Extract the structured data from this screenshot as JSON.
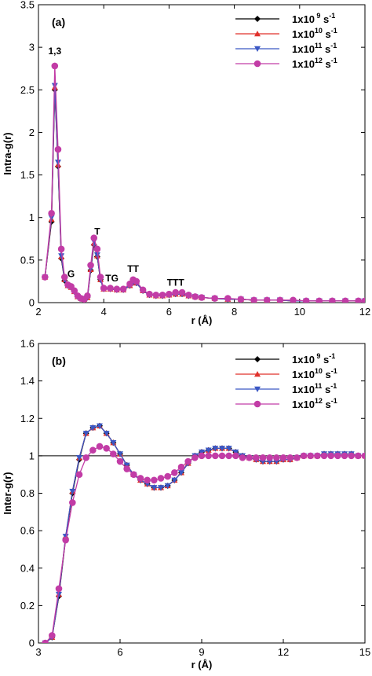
{
  "chart_data": [
    {
      "type": "line",
      "panel_label": "(a)",
      "xlabel": "r (Å)",
      "ylabel": "Intra-g(r)",
      "xlim": [
        2,
        12
      ],
      "ylim": [
        0,
        3.5
      ],
      "xticks": [
        2,
        4,
        6,
        8,
        10,
        12
      ],
      "xtick_labels": [
        "2",
        "4",
        "6",
        "8",
        "10",
        "12"
      ],
      "yticks": [
        0,
        0.5,
        1,
        1.5,
        2,
        2.5,
        3,
        3.5
      ],
      "ytick_labels": [
        "0",
        "0.5",
        "1",
        "1.5",
        "2",
        "2.5",
        "3",
        "3.5"
      ],
      "grid": false,
      "legend_position": "top-right",
      "annotations": [
        {
          "text": "1,3",
          "x": 2.5,
          "y": 2.92
        },
        {
          "text": "G",
          "x": 3.0,
          "y": 0.3
        },
        {
          "text": "T",
          "x": 3.8,
          "y": 0.8
        },
        {
          "text": "TG",
          "x": 4.25,
          "y": 0.25
        },
        {
          "text": "TT",
          "x": 4.9,
          "y": 0.36
        },
        {
          "text": "TTT",
          "x": 6.2,
          "y": 0.2
        }
      ],
      "series": [
        {
          "name": "1x10 9 s-1",
          "name_base": "1x10",
          "name_exp": " 9",
          "name_unit": " s",
          "name_unit_exp": "-1",
          "color": "#000000",
          "marker": "diamond",
          "x": [
            2.2,
            2.4,
            2.5,
            2.6,
            2.7,
            2.8,
            2.9,
            3.0,
            3.1,
            3.2,
            3.3,
            3.4,
            3.5,
            3.6,
            3.7,
            3.8,
            3.9,
            4.0,
            4.2,
            4.4,
            4.6,
            4.8,
            4.9,
            5.0,
            5.2,
            5.4,
            5.6,
            5.8,
            6.0,
            6.2,
            6.4,
            6.6,
            6.8,
            7.0,
            7.4,
            7.8,
            8.2,
            8.6,
            9.0,
            9.4,
            9.8,
            10.2,
            10.6,
            11.0,
            11.4,
            11.8,
            12.0
          ],
          "y": [
            0.3,
            0.95,
            2.5,
            1.6,
            0.52,
            0.26,
            0.2,
            0.18,
            0.13,
            0.07,
            0.05,
            0.04,
            0.06,
            0.38,
            0.68,
            0.54,
            0.27,
            0.16,
            0.16,
            0.15,
            0.15,
            0.2,
            0.24,
            0.23,
            0.14,
            0.09,
            0.08,
            0.08,
            0.09,
            0.1,
            0.1,
            0.08,
            0.07,
            0.06,
            0.05,
            0.04,
            0.04,
            0.03,
            0.03,
            0.03,
            0.02,
            0.02,
            0.02,
            0.02,
            0.02,
            0.02,
            0.02
          ]
        },
        {
          "name": "1x10 10 s-1",
          "name_base": "1x10",
          "name_exp": "10",
          "name_unit": " s",
          "name_unit_exp": "-1",
          "color": "#e0312b",
          "marker": "triangle-up",
          "x": [
            2.2,
            2.4,
            2.5,
            2.6,
            2.7,
            2.8,
            2.9,
            3.0,
            3.1,
            3.2,
            3.3,
            3.4,
            3.5,
            3.6,
            3.7,
            3.8,
            3.9,
            4.0,
            4.2,
            4.4,
            4.6,
            4.8,
            4.9,
            5.0,
            5.2,
            5.4,
            5.6,
            5.8,
            6.0,
            6.2,
            6.4,
            6.6,
            6.8,
            7.0,
            7.4,
            7.8,
            8.2,
            8.6,
            9.0,
            9.4,
            9.8,
            10.2,
            10.6,
            11.0,
            11.4,
            11.8,
            12.0
          ],
          "y": [
            0.3,
            0.98,
            2.53,
            1.62,
            0.54,
            0.27,
            0.2,
            0.18,
            0.13,
            0.07,
            0.05,
            0.04,
            0.06,
            0.39,
            0.7,
            0.55,
            0.27,
            0.16,
            0.16,
            0.15,
            0.15,
            0.2,
            0.24,
            0.23,
            0.14,
            0.09,
            0.08,
            0.08,
            0.09,
            0.1,
            0.1,
            0.08,
            0.07,
            0.06,
            0.05,
            0.04,
            0.04,
            0.03,
            0.03,
            0.03,
            0.02,
            0.02,
            0.02,
            0.02,
            0.02,
            0.02,
            0.02
          ]
        },
        {
          "name": "1x10 11 s-1",
          "name_base": "1x10",
          "name_exp": "11",
          "name_unit": " s",
          "name_unit_exp": "-1",
          "color": "#3a57c4",
          "marker": "triangle-down",
          "x": [
            2.2,
            2.4,
            2.5,
            2.6,
            2.7,
            2.8,
            2.9,
            3.0,
            3.1,
            3.2,
            3.3,
            3.4,
            3.5,
            3.6,
            3.7,
            3.8,
            3.9,
            4.0,
            4.2,
            4.4,
            4.6,
            4.8,
            4.9,
            5.0,
            5.2,
            5.4,
            5.6,
            5.8,
            6.0,
            6.2,
            6.4,
            6.6,
            6.8,
            7.0,
            7.4,
            7.8,
            8.2,
            8.6,
            9.0,
            9.4,
            9.8,
            10.2,
            10.6,
            11.0,
            11.4,
            11.8,
            12.0
          ],
          "y": [
            0.3,
            1.0,
            2.55,
            1.65,
            0.55,
            0.27,
            0.2,
            0.18,
            0.13,
            0.07,
            0.05,
            0.04,
            0.06,
            0.4,
            0.72,
            0.56,
            0.27,
            0.16,
            0.16,
            0.15,
            0.15,
            0.2,
            0.24,
            0.23,
            0.14,
            0.09,
            0.08,
            0.08,
            0.09,
            0.1,
            0.1,
            0.08,
            0.07,
            0.06,
            0.05,
            0.04,
            0.04,
            0.03,
            0.03,
            0.03,
            0.02,
            0.02,
            0.02,
            0.02,
            0.02,
            0.02,
            0.02
          ]
        },
        {
          "name": "1x10 12 s-1",
          "name_base": "1x10",
          "name_exp": "12",
          "name_unit": " s",
          "name_unit_exp": "-1",
          "color": "#c23ca6",
          "marker": "circle",
          "x": [
            2.2,
            2.4,
            2.5,
            2.6,
            2.7,
            2.8,
            2.9,
            3.0,
            3.1,
            3.2,
            3.3,
            3.4,
            3.5,
            3.6,
            3.7,
            3.8,
            3.9,
            4.0,
            4.2,
            4.4,
            4.6,
            4.8,
            4.9,
            5.0,
            5.2,
            5.4,
            5.6,
            5.8,
            6.0,
            6.2,
            6.4,
            6.6,
            6.8,
            7.0,
            7.4,
            7.8,
            8.2,
            8.6,
            9.0,
            9.4,
            9.8,
            10.2,
            10.6,
            11.0,
            11.4,
            11.8,
            12.0
          ],
          "y": [
            0.3,
            1.05,
            2.78,
            1.8,
            0.63,
            0.3,
            0.21,
            0.19,
            0.14,
            0.08,
            0.05,
            0.04,
            0.08,
            0.44,
            0.76,
            0.63,
            0.3,
            0.17,
            0.17,
            0.16,
            0.16,
            0.22,
            0.27,
            0.25,
            0.15,
            0.1,
            0.09,
            0.09,
            0.1,
            0.12,
            0.12,
            0.09,
            0.07,
            0.06,
            0.05,
            0.05,
            0.04,
            0.03,
            0.03,
            0.03,
            0.03,
            0.02,
            0.02,
            0.02,
            0.02,
            0.02,
            0.02
          ]
        }
      ]
    },
    {
      "type": "line",
      "panel_label": "(b)",
      "xlabel": "r (Å)",
      "ylabel": "Inter-g(r)",
      "xlim": [
        3,
        15
      ],
      "ylim": [
        0,
        1.6
      ],
      "xticks": [
        3,
        6,
        9,
        12,
        15
      ],
      "xtick_labels": [
        "3",
        "6",
        "9",
        "12",
        "15"
      ],
      "yticks": [
        0,
        0.2,
        0.4,
        0.6,
        0.8,
        1,
        1.2,
        1.4,
        1.6
      ],
      "ytick_labels": [
        "0",
        "0.2",
        "0.4",
        "0.6",
        "0.8",
        "1",
        "1.2",
        "1.4",
        "1.6"
      ],
      "reference_line_y": 1,
      "grid": false,
      "legend_position": "top-right",
      "series": [
        {
          "name": "1x10 9 s-1",
          "name_base": "1x10",
          "name_exp": " 9",
          "name_unit": " s",
          "name_unit_exp": "-1",
          "color": "#000000",
          "marker": "diamond",
          "x": [
            3.25,
            3.5,
            3.75,
            4.0,
            4.25,
            4.5,
            4.75,
            5.0,
            5.25,
            5.5,
            5.75,
            6.0,
            6.25,
            6.5,
            6.75,
            7.0,
            7.25,
            7.5,
            7.75,
            8.0,
            8.25,
            8.5,
            8.75,
            9.0,
            9.25,
            9.5,
            9.75,
            10.0,
            10.25,
            10.5,
            10.75,
            11.0,
            11.25,
            11.5,
            11.75,
            12.0,
            12.25,
            12.5,
            12.75,
            13.0,
            13.25,
            13.5,
            13.75,
            14.0,
            14.25,
            14.5,
            14.75,
            15.0
          ],
          "y": [
            0.0,
            0.03,
            0.25,
            0.56,
            0.8,
            0.98,
            1.12,
            1.15,
            1.16,
            1.12,
            1.07,
            1.01,
            0.95,
            0.9,
            0.87,
            0.85,
            0.83,
            0.83,
            0.84,
            0.87,
            0.91,
            0.96,
            1.0,
            1.02,
            1.03,
            1.04,
            1.04,
            1.04,
            1.02,
            1.0,
            0.99,
            0.98,
            0.97,
            0.97,
            0.97,
            0.98,
            0.98,
            0.99,
            1.0,
            1.0,
            1.0,
            1.01,
            1.01,
            1.01,
            1.01,
            1.01,
            1.0,
            1.0
          ]
        },
        {
          "name": "1x10 10 s-1",
          "name_base": "1x10",
          "name_exp": "10",
          "name_unit": " s",
          "name_unit_exp": "-1",
          "color": "#e0312b",
          "marker": "triangle-up",
          "x": [
            3.25,
            3.5,
            3.75,
            4.0,
            4.25,
            4.5,
            4.75,
            5.0,
            5.25,
            5.5,
            5.75,
            6.0,
            6.25,
            6.5,
            6.75,
            7.0,
            7.25,
            7.5,
            7.75,
            8.0,
            8.25,
            8.5,
            8.75,
            9.0,
            9.25,
            9.5,
            9.75,
            10.0,
            10.25,
            10.5,
            10.75,
            11.0,
            11.25,
            11.5,
            11.75,
            12.0,
            12.25,
            12.5,
            12.75,
            13.0,
            13.25,
            13.5,
            13.75,
            14.0,
            14.25,
            14.5,
            14.75,
            15.0
          ],
          "y": [
            0.0,
            0.03,
            0.26,
            0.57,
            0.81,
            0.99,
            1.12,
            1.15,
            1.16,
            1.12,
            1.07,
            1.01,
            0.95,
            0.9,
            0.87,
            0.85,
            0.83,
            0.83,
            0.84,
            0.87,
            0.91,
            0.96,
            1.0,
            1.02,
            1.03,
            1.04,
            1.04,
            1.04,
            1.02,
            1.0,
            0.99,
            0.98,
            0.97,
            0.97,
            0.97,
            0.98,
            0.98,
            0.99,
            1.0,
            1.0,
            1.0,
            1.01,
            1.01,
            1.01,
            1.01,
            1.01,
            1.0,
            1.0
          ]
        },
        {
          "name": "1x10 11 s-1",
          "name_base": "1x10",
          "name_exp": "11",
          "name_unit": " s",
          "name_unit_exp": "-1",
          "color": "#3a57c4",
          "marker": "triangle-down",
          "x": [
            3.25,
            3.5,
            3.75,
            4.0,
            4.25,
            4.5,
            4.75,
            5.0,
            5.25,
            5.5,
            5.75,
            6.0,
            6.25,
            6.5,
            6.75,
            7.0,
            7.25,
            7.5,
            7.75,
            8.0,
            8.25,
            8.5,
            8.75,
            9.0,
            9.25,
            9.5,
            9.75,
            10.0,
            10.25,
            10.5,
            10.75,
            11.0,
            11.25,
            11.5,
            11.75,
            12.0,
            12.25,
            12.5,
            12.75,
            13.0,
            13.25,
            13.5,
            13.75,
            14.0,
            14.25,
            14.5,
            14.75,
            15.0
          ],
          "y": [
            0.0,
            0.03,
            0.26,
            0.57,
            0.81,
            0.99,
            1.12,
            1.15,
            1.16,
            1.12,
            1.07,
            1.01,
            0.95,
            0.9,
            0.87,
            0.85,
            0.83,
            0.83,
            0.84,
            0.87,
            0.91,
            0.96,
            1.0,
            1.02,
            1.03,
            1.04,
            1.04,
            1.04,
            1.02,
            1.0,
            0.99,
            0.98,
            0.97,
            0.97,
            0.97,
            0.98,
            0.98,
            0.99,
            1.0,
            1.0,
            1.0,
            1.01,
            1.01,
            1.01,
            1.01,
            1.01,
            1.0,
            1.0
          ]
        },
        {
          "name": "1x10 12 s-1",
          "name_base": "1x10",
          "name_exp": "12",
          "name_unit": " s",
          "name_unit_exp": "-1",
          "color": "#c23ca6",
          "marker": "circle",
          "x": [
            3.25,
            3.5,
            3.75,
            4.0,
            4.25,
            4.5,
            4.75,
            5.0,
            5.25,
            5.5,
            5.75,
            6.0,
            6.25,
            6.5,
            6.75,
            7.0,
            7.25,
            7.5,
            7.75,
            8.0,
            8.25,
            8.5,
            8.75,
            9.0,
            9.25,
            9.5,
            9.75,
            10.0,
            10.25,
            10.5,
            10.75,
            11.0,
            11.25,
            11.5,
            11.75,
            12.0,
            12.25,
            12.5,
            12.75,
            13.0,
            13.25,
            13.5,
            13.75,
            14.0,
            14.25,
            14.5,
            14.75,
            15.0
          ],
          "y": [
            0.0,
            0.04,
            0.29,
            0.55,
            0.75,
            0.9,
            0.99,
            1.03,
            1.05,
            1.04,
            1.01,
            0.97,
            0.93,
            0.9,
            0.88,
            0.87,
            0.87,
            0.88,
            0.89,
            0.91,
            0.94,
            0.97,
            0.99,
            1.0,
            1.0,
            1.0,
            1.0,
            1.0,
            1.0,
            0.99,
            0.99,
            0.99,
            0.99,
            0.99,
            0.99,
            0.99,
            0.99,
            0.99,
            1.0,
            1.0,
            1.0,
            1.0,
            1.0,
            1.0,
            1.0,
            1.0,
            1.0,
            1.0
          ]
        }
      ]
    }
  ]
}
